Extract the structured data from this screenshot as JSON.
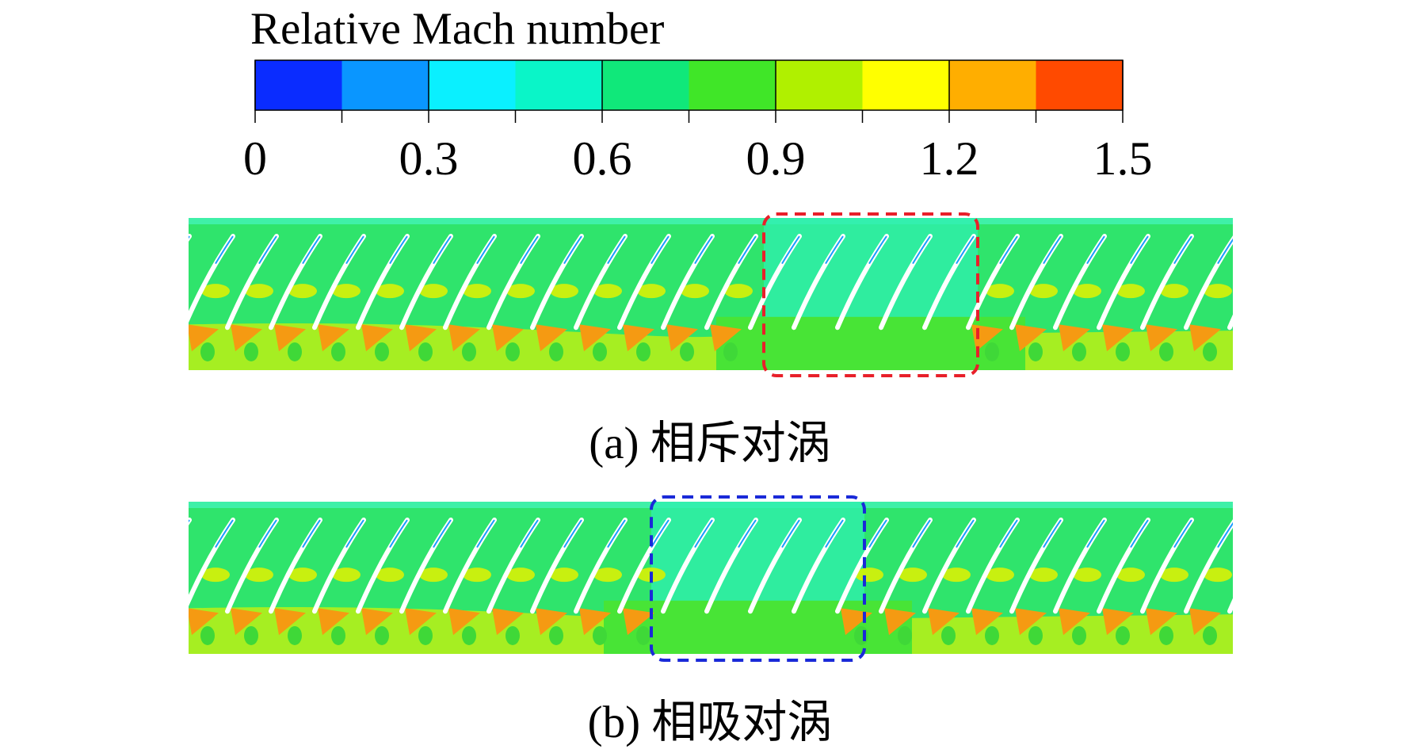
{
  "colorbar": {
    "title": "Relative Mach number",
    "ticks": [
      0,
      0.3,
      0.6,
      0.9,
      1.2,
      1.5
    ],
    "colors": [
      "#0a2cff",
      "#0a96ff",
      "#0af0ff",
      "#0af5c8",
      "#10e87a",
      "#40e628",
      "#b0f000",
      "#ffff00",
      "#ffae00",
      "#ff4a00"
    ]
  },
  "panels": [
    {
      "caption": "(a) 相斥对涡",
      "box_color": "#e8202a"
    },
    {
      "caption": "(b) 相吸对涡",
      "box_color": "#1a2ad8"
    }
  ]
}
